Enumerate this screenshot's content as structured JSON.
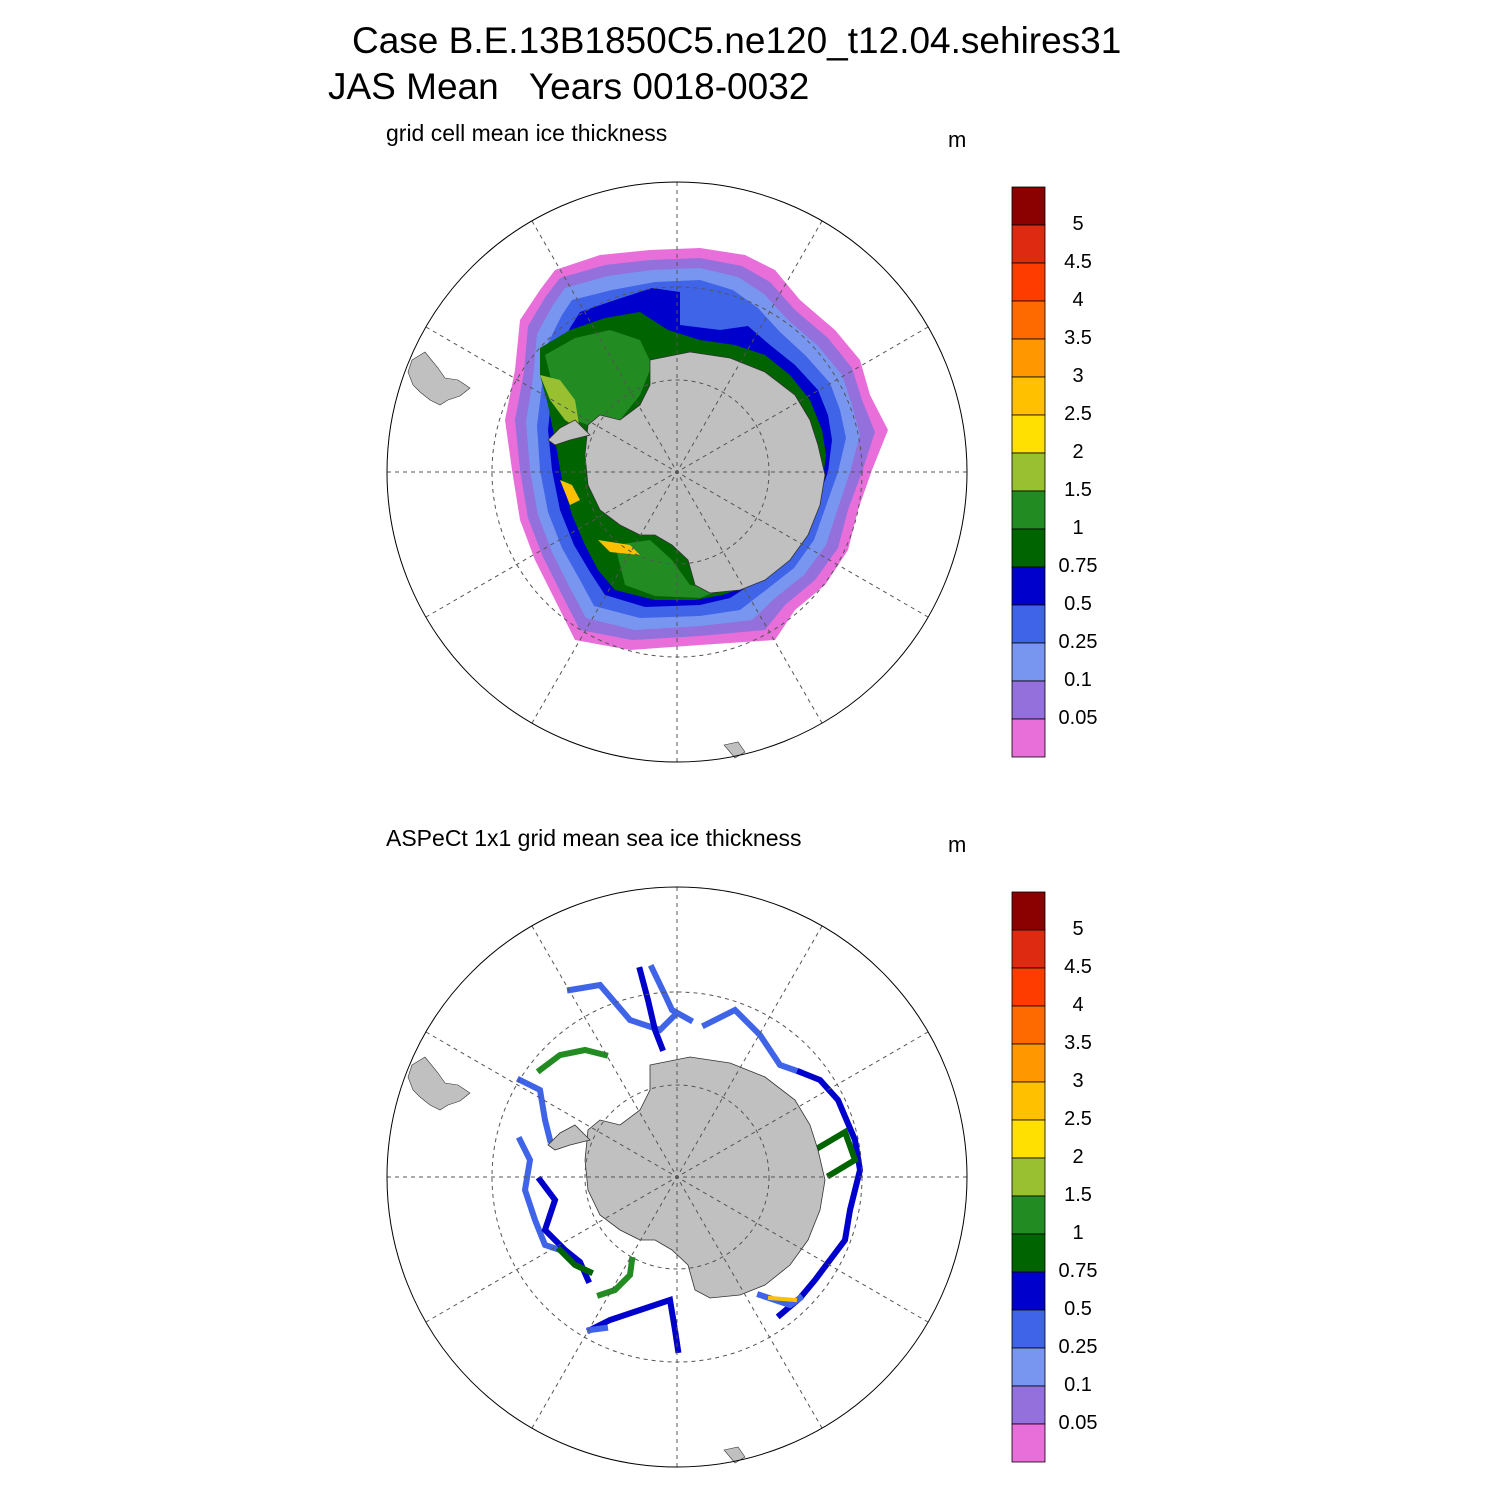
{
  "header": {
    "line1": "Case B.E.13B1850C5.ne120_t12.04.sehires31",
    "line2": "JAS Mean   Years 0018-0032"
  },
  "panels": [
    {
      "title": "grid cell mean ice thickness",
      "unit": "m"
    },
    {
      "title": "ASPeCt 1x1 grid mean sea ice thickness",
      "unit": "m"
    }
  ],
  "colorbar": {
    "labels": [
      "5",
      "4.5",
      "4",
      "3.5",
      "3",
      "2.5",
      "2",
      "1.5",
      "1",
      "0.75",
      "0.5",
      "0.25",
      "0.1",
      "0.05"
    ],
    "colors_top_to_bottom": [
      "#8b0000",
      "#dd2a10",
      "#ff3c00",
      "#ff6a00",
      "#ff9800",
      "#ffc000",
      "#ffe000",
      "#99c030",
      "#228b22",
      "#006400",
      "#0000cd",
      "#3f64e8",
      "#7896f0",
      "#9370db",
      "#e86fda"
    ]
  },
  "map_colors": {
    "land": "#c0c0c0",
    "ocean": "#ffffff"
  }
}
